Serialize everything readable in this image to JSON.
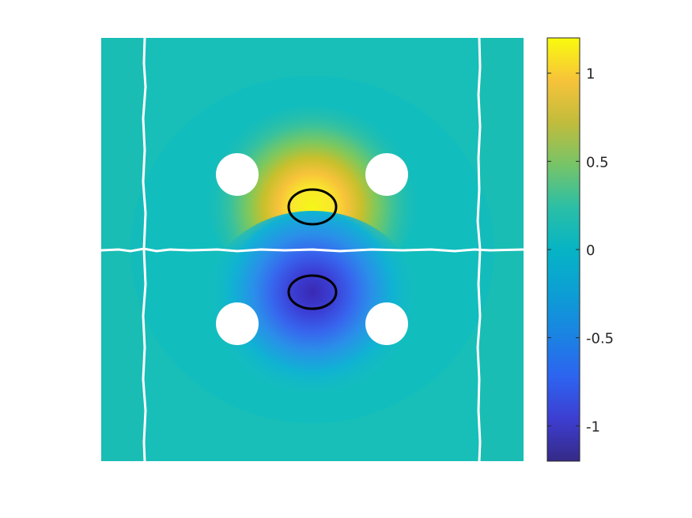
{
  "chart_data": {
    "type": "heatmap",
    "title": "",
    "xlabel": "",
    "ylabel": "",
    "axes_visible": false,
    "colormap": "parula",
    "colorbar": {
      "position": "right",
      "range": [
        -1.2,
        1.2
      ],
      "ticks": [
        -1,
        -0.5,
        0,
        0.5,
        1
      ],
      "tick_labels": [
        "-1",
        "-0.5",
        "0",
        "0.5",
        "1"
      ]
    },
    "background_value": 0.05,
    "features": [
      {
        "name": "positive-core",
        "value": 1.2,
        "contour_level": 1.0
      },
      {
        "name": "negative-core",
        "value": -1.2,
        "contour_level": -1.0
      }
    ],
    "holes": 4,
    "crack_lines": 3,
    "colors": {
      "parula_low": "#3e26a8",
      "parula_mid": "#13beb7",
      "parula_high": "#f9fb0e",
      "contour": "#000000",
      "crack": "#ffffff"
    }
  }
}
